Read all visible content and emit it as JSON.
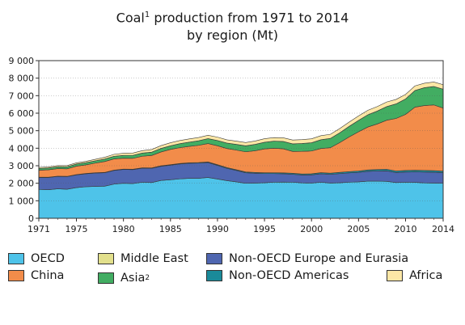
{
  "chart_data": {
    "type": "area",
    "stacked": true,
    "title_main": "Coal",
    "title_sup": "1",
    "title_rest": " production from 1971 to 2014",
    "subtitle": "by region (Mt)",
    "xlabel": "",
    "ylabel": "",
    "xlim": [
      1971,
      2014
    ],
    "ylim": [
      0,
      9000
    ],
    "x_ticks": [
      "1971",
      "1975",
      "1980",
      "1985",
      "1990",
      "1995",
      "2000",
      "2005",
      "2010",
      "2014"
    ],
    "y_ticks": [
      "0",
      "1 000",
      "2 000",
      "3 000",
      "4 000",
      "5 000",
      "6 000",
      "7 000",
      "8 000",
      "9 000"
    ],
    "grid": true,
    "legend_position": "bottom",
    "x": [
      1971,
      1972,
      1973,
      1974,
      1975,
      1976,
      1977,
      1978,
      1979,
      1980,
      1981,
      1982,
      1983,
      1984,
      1985,
      1986,
      1987,
      1988,
      1989,
      1990,
      1991,
      1992,
      1993,
      1994,
      1995,
      1996,
      1997,
      1998,
      1999,
      2000,
      2001,
      2002,
      2003,
      2004,
      2005,
      2006,
      2007,
      2008,
      2009,
      2010,
      2011,
      2012,
      2013,
      2014
    ],
    "series": [
      {
        "name": "OECD",
        "sup": "",
        "color": "#4ec3e9",
        "values": [
          1650,
          1630,
          1680,
          1660,
          1750,
          1800,
          1820,
          1830,
          1950,
          2000,
          1980,
          2060,
          2040,
          2160,
          2200,
          2250,
          2280,
          2280,
          2330,
          2240,
          2150,
          2080,
          2000,
          2010,
          2030,
          2060,
          2070,
          2060,
          2020,
          2010,
          2060,
          2010,
          2030,
          2060,
          2080,
          2120,
          2120,
          2110,
          2040,
          2060,
          2050,
          2020,
          2010,
          2000
        ]
      },
      {
        "name": "Non-OECD Europe and Eurasia",
        "sup": "",
        "color": "#4f66b0",
        "values": [
          680,
          700,
          710,
          720,
          730,
          740,
          760,
          770,
          780,
          790,
          800,
          800,
          810,
          810,
          830,
          850,
          860,
          870,
          850,
          780,
          700,
          650,
          600,
          560,
          520,
          490,
          470,
          450,
          450,
          470,
          480,
          500,
          520,
          530,
          540,
          560,
          580,
          600,
          570,
          580,
          600,
          620,
          620,
          600
        ]
      },
      {
        "name": "Non-OECD Americas",
        "sup": "",
        "color": "#1a8a9a",
        "values": [
          15,
          15,
          15,
          15,
          15,
          20,
          20,
          20,
          20,
          20,
          22,
          22,
          25,
          28,
          30,
          32,
          33,
          35,
          38,
          40,
          42,
          44,
          46,
          48,
          50,
          52,
          55,
          58,
          60,
          62,
          65,
          68,
          70,
          75,
          80,
          82,
          85,
          88,
          90,
          92,
          95,
          95,
          92,
          90
        ]
      },
      {
        "name": "China",
        "sup": "",
        "color": "#f28c4a",
        "values": [
          400,
          420,
          430,
          430,
          480,
          490,
          550,
          620,
          640,
          620,
          620,
          660,
          710,
          790,
          870,
          900,
          930,
          980,
          1050,
          1080,
          1090,
          1120,
          1150,
          1240,
          1360,
          1400,
          1370,
          1250,
          1290,
          1300,
          1380,
          1450,
          1700,
          1980,
          2240,
          2450,
          2600,
          2800,
          3000,
          3200,
          3600,
          3700,
          3750,
          3600
        ]
      },
      {
        "name": "Asia",
        "sup": "2",
        "color": "#42ad62",
        "values": [
          100,
          105,
          110,
          115,
          120,
          125,
          130,
          140,
          150,
          160,
          170,
          180,
          190,
          200,
          210,
          230,
          245,
          260,
          280,
          300,
          310,
          325,
          340,
          360,
          380,
          400,
          420,
          430,
          450,
          470,
          500,
          530,
          560,
          600,
          650,
          700,
          740,
          780,
          830,
          880,
          950,
          1020,
          1050,
          1080
        ]
      },
      {
        "name": "Middle East",
        "sup": "",
        "color": "#e2e08c",
        "values": [
          2,
          2,
          2,
          2,
          2,
          2,
          2,
          2,
          2,
          2,
          2,
          2,
          2,
          2,
          2,
          2,
          2,
          2,
          2,
          2,
          2,
          2,
          2,
          2,
          2,
          2,
          2,
          2,
          2,
          2,
          2,
          2,
          2,
          2,
          2,
          2,
          2,
          2,
          2,
          2,
          2,
          2,
          2,
          2
        ]
      },
      {
        "name": "Africa",
        "sup": "",
        "color": "#fce7a6",
        "values": [
          60,
          62,
          64,
          66,
          68,
          75,
          85,
          100,
          110,
          120,
          130,
          140,
          150,
          160,
          170,
          175,
          180,
          185,
          190,
          190,
          185,
          185,
          185,
          190,
          200,
          205,
          210,
          220,
          220,
          225,
          230,
          235,
          240,
          245,
          250,
          255,
          255,
          260,
          255,
          260,
          260,
          255,
          255,
          255
        ]
      }
    ],
    "legend": [
      {
        "name": "OECD",
        "sup": "",
        "color": "#4ec3e9"
      },
      {
        "name": "China",
        "sup": "",
        "color": "#f28c4a"
      },
      {
        "name": "Middle East",
        "sup": "",
        "color": "#e2e08c"
      },
      {
        "name": "Asia",
        "sup": "2",
        "color": "#42ad62"
      },
      {
        "name": "Non-OECD Europe and Eurasia",
        "sup": "",
        "color": "#4f66b0"
      },
      {
        "name": "Non-OECD Americas",
        "sup": "",
        "color": "#1a8a9a"
      },
      {
        "name": "Africa",
        "sup": "",
        "color": "#fce7a6"
      }
    ]
  }
}
